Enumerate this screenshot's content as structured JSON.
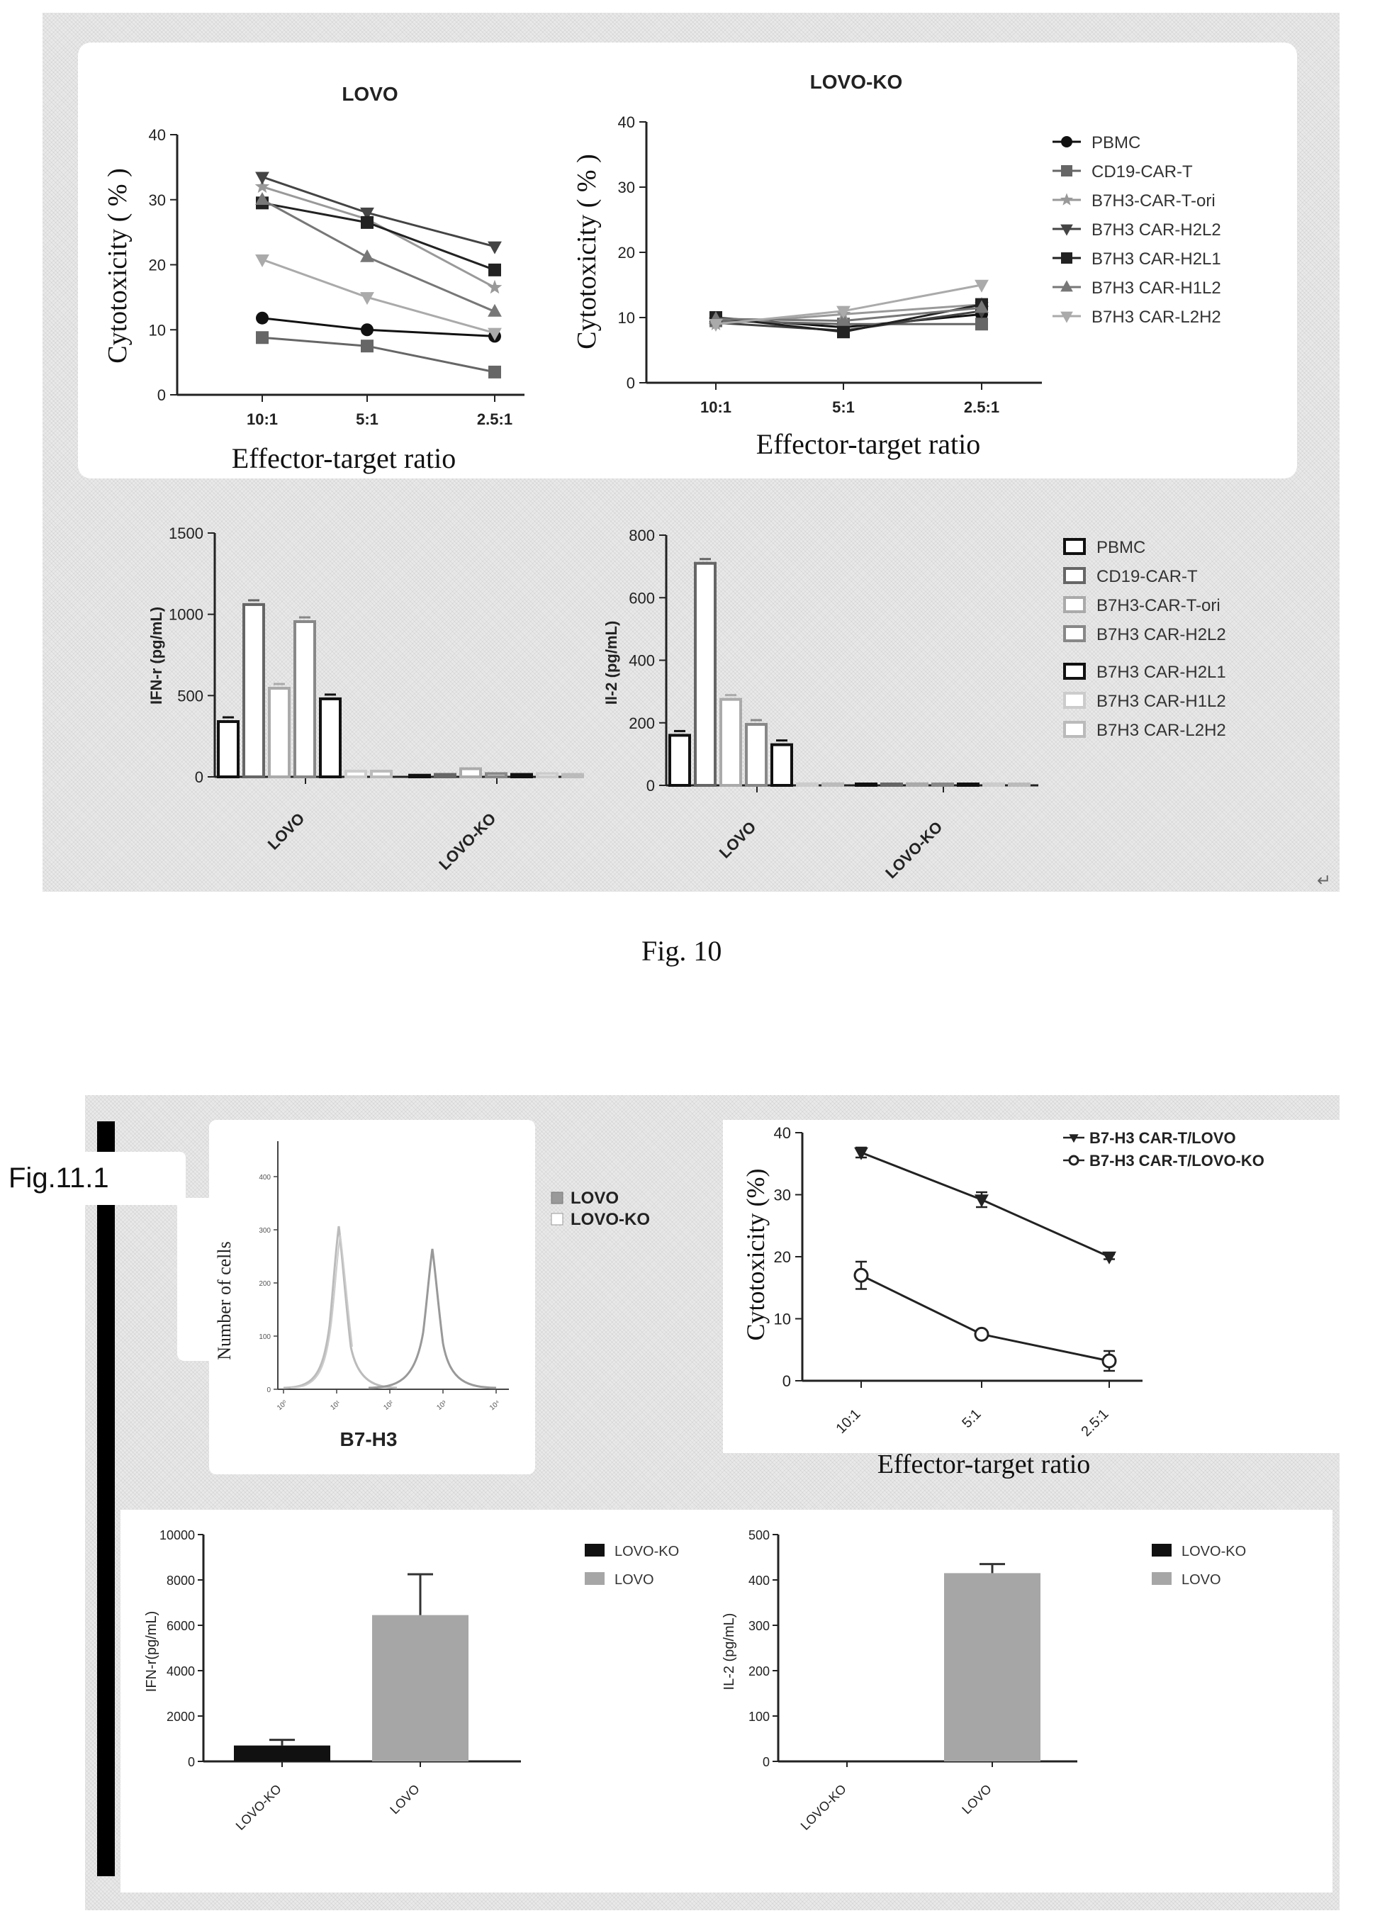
{
  "figure10": {
    "caption": "Fig. 10",
    "corner_mark": "↵",
    "legend_line": [
      {
        "name": "PBMC",
        "color": "#111111",
        "marker": "circle"
      },
      {
        "name": "CD19-CAR-T",
        "color": "#666666",
        "marker": "square"
      },
      {
        "name": "B7H3-CAR-T-ori",
        "color": "#999999",
        "marker": "star"
      },
      {
        "name": "B7H3 CAR-H2L2",
        "color": "#444444",
        "marker": "triangle-down"
      },
      {
        "name": "B7H3 CAR-H2L1",
        "color": "#222222",
        "marker": "square-filled"
      },
      {
        "name": "B7H3 CAR-H1L2",
        "color": "#777777",
        "marker": "triangle-up"
      },
      {
        "name": "B7H3 CAR-L2H2",
        "color": "#aaaaaa",
        "marker": "triangle-down"
      }
    ],
    "legend_bar": [
      {
        "name": "PBMC",
        "color": "#111111"
      },
      {
        "name": "CD19-CAR-T",
        "color": "#666666"
      },
      {
        "name": "B7H3-CAR-T-ori",
        "color": "#aaaaaa"
      },
      {
        "name": "B7H3 CAR-H2L2",
        "color": "#888888"
      },
      {
        "name": "B7H3 CAR-H2L1",
        "color": "#111111"
      },
      {
        "name": "B7H3 CAR-H1L2",
        "color": "#cccccc"
      },
      {
        "name": "B7H3 CAR-L2H2",
        "color": "#bbbbbb"
      }
    ]
  },
  "figure11": {
    "tag": "Fig.11.1",
    "histogram": {
      "ylabel": "Number of cells",
      "xlabel": "B7-H3",
      "legend": [
        "LOVO",
        "LOVO-KO"
      ],
      "yticks": [
        "0",
        "100",
        "200",
        "300",
        "400"
      ],
      "xticks": [
        "10⁰",
        "10¹",
        "10²",
        "10³",
        "10⁴"
      ]
    }
  },
  "chart_data": [
    {
      "type": "line",
      "title": "LOVO",
      "xlabel": "Effector-target ratio",
      "ylabel": "Cytotoxicity ( % )",
      "categories": [
        "10:1",
        "5:1",
        "2.5:1"
      ],
      "ylim": [
        0,
        40
      ],
      "yticks": [
        "0",
        "10",
        "20",
        "30",
        "40"
      ],
      "series": [
        {
          "name": "PBMC",
          "values": [
            11.8,
            10,
            9
          ]
        },
        {
          "name": "CD19-CAR-T",
          "values": [
            8.8,
            7.5,
            3.5
          ]
        },
        {
          "name": "B7H3-CAR-T-ori",
          "values": [
            32,
            27,
            16.5
          ]
        },
        {
          "name": "B7H3 CAR-H2L2",
          "values": [
            33.5,
            28,
            22.8
          ]
        },
        {
          "name": "B7H3 CAR-H2L1",
          "values": [
            29.5,
            26.5,
            19.2
          ]
        },
        {
          "name": "B7H3 CAR-H1L2",
          "values": [
            30,
            21.2,
            12.8
          ]
        },
        {
          "name": "B7H3 CAR-L2H2",
          "values": [
            20.8,
            15,
            9.5
          ]
        }
      ]
    },
    {
      "type": "line",
      "title": "LOVO-KO",
      "xlabel": "Effector-target ratio",
      "ylabel": "Cytotoxicity ( % )",
      "categories": [
        "10:1",
        "5:1",
        "2.5:1"
      ],
      "ylim": [
        0,
        40
      ],
      "yticks": [
        "0",
        "10",
        "20",
        "30",
        "40"
      ],
      "series": [
        {
          "name": "PBMC",
          "values": [
            10,
            8.5,
            10.5
          ]
        },
        {
          "name": "CD19-CAR-T",
          "values": [
            9.5,
            9,
            9
          ]
        },
        {
          "name": "B7H3-CAR-T-ori",
          "values": [
            9,
            10.5,
            12
          ]
        },
        {
          "name": "B7H3 CAR-H2L2",
          "values": [
            9.2,
            8,
            11
          ]
        },
        {
          "name": "B7H3 CAR-H2L1",
          "values": [
            10,
            7.8,
            12
          ]
        },
        {
          "name": "B7H3 CAR-H1L2",
          "values": [
            9.8,
            9.5,
            11.5
          ]
        },
        {
          "name": "B7H3 CAR-L2H2",
          "values": [
            9,
            11,
            15
          ]
        }
      ]
    },
    {
      "type": "bar",
      "ylabel": "IFN-r (pg/mL)",
      "categories": [
        "LOVO",
        "LOVO-KO"
      ],
      "ylim": [
        0,
        1500
      ],
      "yticks": [
        "0",
        "500",
        "1000",
        "1500"
      ],
      "series": [
        {
          "name": "PBMC",
          "values": [
            340,
            10
          ]
        },
        {
          "name": "CD19-CAR-T",
          "values": [
            1060,
            15
          ]
        },
        {
          "name": "B7H3-CAR-T-ori",
          "values": [
            545,
            50
          ]
        },
        {
          "name": "B7H3 CAR-H2L2",
          "values": [
            955,
            20
          ]
        },
        {
          "name": "B7H3 CAR-H2L1",
          "values": [
            480,
            15
          ]
        },
        {
          "name": "B7H3 CAR-H1L2",
          "values": [
            35,
            20
          ]
        },
        {
          "name": "B7H3 CAR-L2H2",
          "values": [
            35,
            15
          ]
        }
      ]
    },
    {
      "type": "bar",
      "ylabel": "Il-2 (pg/mL)",
      "categories": [
        "LOVO",
        "LOVO-KO"
      ],
      "ylim": [
        0,
        800
      ],
      "yticks": [
        "0",
        "200",
        "400",
        "600",
        "800"
      ],
      "series": [
        {
          "name": "PBMC",
          "values": [
            160,
            2
          ]
        },
        {
          "name": "CD19-CAR-T",
          "values": [
            710,
            3
          ]
        },
        {
          "name": "B7H3-CAR-T-ori",
          "values": [
            275,
            5
          ]
        },
        {
          "name": "B7H3 CAR-H2L2",
          "values": [
            195,
            3
          ]
        },
        {
          "name": "B7H3 CAR-H2L1",
          "values": [
            130,
            4
          ]
        },
        {
          "name": "B7H3 CAR-H1L2",
          "values": [
            5,
            5
          ]
        },
        {
          "name": "B7H3 CAR-L2H2",
          "values": [
            5,
            3
          ]
        }
      ]
    },
    {
      "type": "line",
      "ylabel": "Cytotoxicity (%)",
      "xlabel": "Effector-target ratio",
      "categories": [
        "10:1",
        "5:1",
        "2.5:1"
      ],
      "ylim": [
        0,
        40
      ],
      "yticks": [
        "0",
        "10",
        "20",
        "30",
        "40"
      ],
      "series": [
        {
          "name": "B7-H3 CAR-T/LOVO",
          "values": [
            36.8,
            29.2,
            20
          ],
          "errors": [
            0.8,
            1.2,
            0.4
          ]
        },
        {
          "name": "B7-H3 CAR-T/LOVO-KO",
          "values": [
            17,
            7.5,
            3.2
          ],
          "errors": [
            2.2,
            0.5,
            1.6
          ]
        }
      ]
    },
    {
      "type": "bar",
      "ylabel": "IFN-r(pg/mL)",
      "categories": [
        "LOVO-KO",
        "LOVO"
      ],
      "ylim": [
        0,
        10000
      ],
      "yticks": [
        "0",
        "2000",
        "4000",
        "6000",
        "8000",
        "10000"
      ],
      "values": [
        700,
        6450
      ],
      "errors": [
        250,
        1800
      ],
      "legend": [
        "LOVO-KO",
        "LOVO"
      ]
    },
    {
      "type": "bar",
      "ylabel": "IL-2 (pg/mL)",
      "categories": [
        "LOVO-KO",
        "LOVO"
      ],
      "ylim": [
        0,
        500
      ],
      "yticks": [
        "0",
        "100",
        "200",
        "300",
        "400",
        "500"
      ],
      "values": [
        0,
        415
      ],
      "errors": [
        0,
        20
      ],
      "legend": [
        "LOVO-KO",
        "LOVO"
      ]
    }
  ]
}
